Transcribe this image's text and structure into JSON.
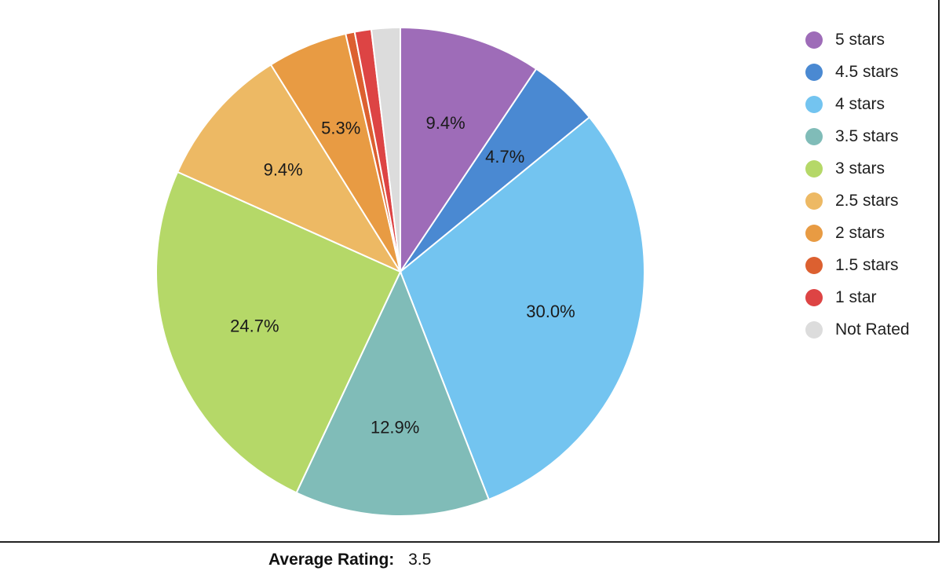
{
  "chart_data": {
    "type": "pie",
    "categories": [
      "5 stars",
      "4.5 stars",
      "4 stars",
      "3.5 stars",
      "3 stars",
      "2.5 stars",
      "2 stars",
      "1.5 stars",
      "1 star",
      "Not Rated"
    ],
    "values": [
      9.4,
      4.7,
      30.0,
      12.9,
      24.7,
      9.4,
      5.3,
      0.6,
      1.1,
      1.9
    ],
    "data_labels": [
      "9.4%",
      "4.7%",
      "30.0%",
      "12.9%",
      "24.7%",
      "9.4%",
      "5.3%",
      "",
      "",
      ""
    ],
    "colors": [
      "#9E6CB8",
      "#4A89D2",
      "#73C4F0",
      "#80BCB8",
      "#B5D868",
      "#EDB964",
      "#E89B43",
      "#DC6030",
      "#DD4444",
      "#DCDCDC"
    ],
    "legend_position": "right",
    "title": "",
    "unit": "%"
  },
  "footer": {
    "label": "Average Rating:",
    "value": "3.5"
  }
}
